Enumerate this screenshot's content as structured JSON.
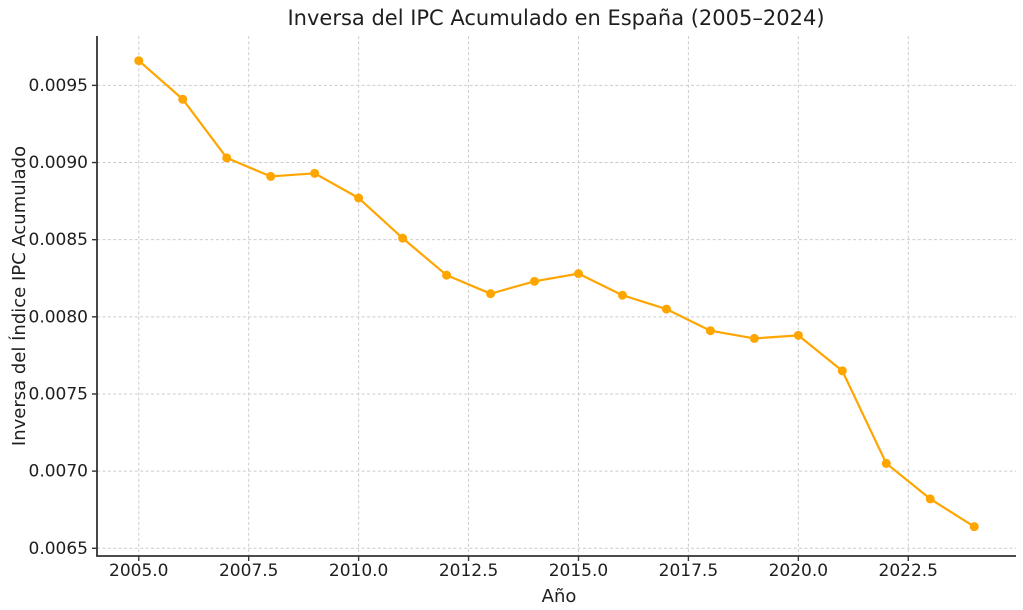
{
  "chart_data": {
    "type": "line",
    "title": "Inversa del IPC Acumulado en España (2005–2024)",
    "xlabel": "Año",
    "ylabel": "Inversa del Índice IPC Acumulado",
    "grid": true,
    "grid_style": "dashed",
    "legend_position": "none",
    "marker": "circle",
    "xlim": [
      2004.05,
      2024.95
    ],
    "ylim": [
      0.00645,
      0.00982
    ],
    "x_ticks": {
      "values": [
        2005.0,
        2007.5,
        2010.0,
        2012.5,
        2015.0,
        2017.5,
        2020.0,
        2022.5
      ],
      "labels": [
        "2005.0",
        "2007.5",
        "2010.0",
        "2012.5",
        "2015.0",
        "2017.5",
        "2020.0",
        "2022.5"
      ]
    },
    "y_ticks": {
      "values": [
        0.0095,
        0.009,
        0.0085,
        0.008,
        0.0075,
        0.007,
        0.0065
      ],
      "labels": [
        "0.0095",
        "0.0090",
        "0.0085",
        "0.0080",
        "0.0075",
        "0.0070",
        "0.0065"
      ]
    },
    "series": [
      {
        "name": "inversa-ipc-acumulado",
        "color": "#FFA500",
        "x": [
          2005,
          2006,
          2007,
          2008,
          2009,
          2010,
          2011,
          2012,
          2013,
          2014,
          2015,
          2016,
          2017,
          2018,
          2019,
          2020,
          2021,
          2022,
          2023,
          2024
        ],
        "y": [
          0.00966,
          0.00941,
          0.00903,
          0.00891,
          0.00893,
          0.00877,
          0.00851,
          0.00827,
          0.00815,
          0.00823,
          0.00828,
          0.00814,
          0.00805,
          0.00791,
          0.00786,
          0.00788,
          0.00765,
          0.00705,
          0.00682,
          0.00664
        ]
      }
    ]
  },
  "colors": {
    "line": "#FFA500",
    "text": "#1f1f1f",
    "grid": "#cccccc",
    "spine": "#333333",
    "background": "#ffffff"
  }
}
